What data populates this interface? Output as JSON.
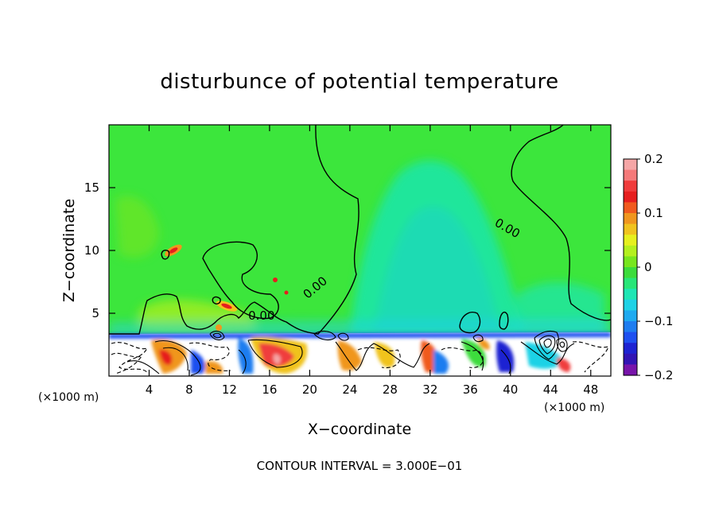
{
  "chart_data": {
    "type": "heatmap",
    "title": "disturbunce of potential temperature",
    "xlabel": "X−coordinate",
    "ylabel": "Z−coordinate",
    "x_unit_left": "(×1000 m)",
    "x_unit_right": "(×1000 m)",
    "xlim": [
      0,
      50
    ],
    "ylim": [
      0,
      20
    ],
    "x_ticks": [
      4,
      8,
      12,
      16,
      20,
      24,
      28,
      32,
      36,
      40,
      44,
      48
    ],
    "x_tick_labels": [
      "4",
      "8",
      "12",
      "16",
      "20",
      "24",
      "28",
      "32",
      "36",
      "40",
      "44",
      "48"
    ],
    "y_ticks": [
      5,
      10,
      15
    ],
    "y_tick_labels": [
      "5",
      "10",
      "15"
    ],
    "colorbar": {
      "min": -0.2,
      "max": 0.2,
      "ticks": [
        0.2,
        0.1,
        0,
        -0.1,
        -0.2
      ],
      "tick_labels": [
        "0.2",
        "0.1",
        "0",
        "−0.1",
        "−0.2"
      ],
      "colors": [
        "#f5a6a6",
        "#f57a7a",
        "#f03c3c",
        "#e61e1e",
        "#f05a1e",
        "#f0961e",
        "#f0c31e",
        "#e6f01e",
        "#b4f01e",
        "#78e61e",
        "#3cdc3c",
        "#28e678",
        "#1ee6b4",
        "#1ed2e6",
        "#1eaaf0",
        "#1e7df0",
        "#1e50f0",
        "#1e23d2",
        "#3214b4",
        "#7814aa"
      ]
    },
    "contour_labels": [
      {
        "text": "0.00",
        "x": 20.8,
        "y": 6.8
      },
      {
        "text": "0.00",
        "x": 15.2,
        "y": 4.5
      },
      {
        "text": "0.00",
        "x": 39.5,
        "y": 11.5
      }
    ],
    "contour_interval_text": "CONTOUR INTERVAL = 3.000E−01"
  }
}
